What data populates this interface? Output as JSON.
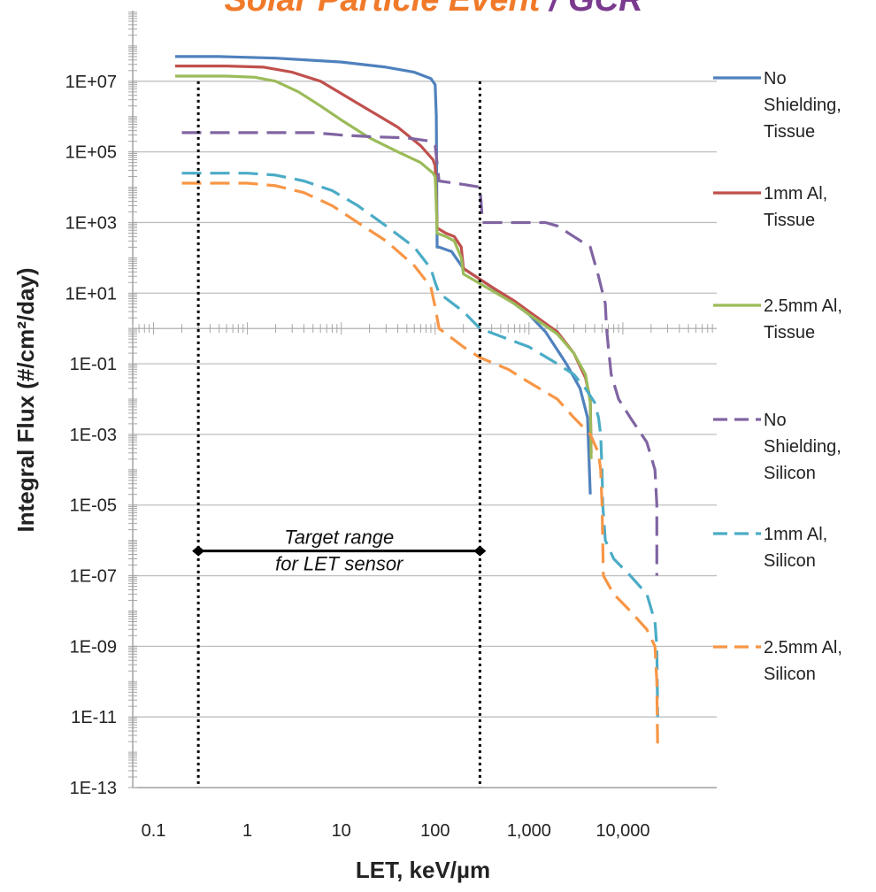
{
  "chart_data": {
    "type": "line",
    "title_parts": [
      {
        "text": "Solar Particle Event",
        "color": "#f07a2a"
      },
      {
        "text": " / ",
        "color": "#7a3a8e"
      },
      {
        "text": "GCR",
        "color": "#7a3a8e"
      }
    ],
    "xlabel": "LET, keV/µm",
    "ylabel": "Integral Flux (#/cm²/day)",
    "x_scale": "log",
    "y_scale": "log",
    "xlim": [
      0.06,
      100000
    ],
    "ylim": [
      1e-13,
      1000000000.0
    ],
    "x_ticks": [
      {
        "value": 0.1,
        "label": "0.1"
      },
      {
        "value": 1,
        "label": "1"
      },
      {
        "value": 10,
        "label": "10"
      },
      {
        "value": 100,
        "label": "100"
      },
      {
        "value": 1000,
        "label": "1,000"
      },
      {
        "value": 10000,
        "label": "10,000"
      }
    ],
    "y_ticks": [
      {
        "value": 10000000.0,
        "label": "1E+07"
      },
      {
        "value": 100000.0,
        "label": "1E+05"
      },
      {
        "value": 1000.0,
        "label": "1E+03"
      },
      {
        "value": 10.0,
        "label": "1E+01"
      },
      {
        "value": 0.1,
        "label": "1E-01"
      },
      {
        "value": 0.001,
        "label": "1E-03"
      },
      {
        "value": 1e-05,
        "label": "1E-05"
      },
      {
        "value": 1e-07,
        "label": "1E-07"
      },
      {
        "value": 1e-09,
        "label": "1E-09"
      },
      {
        "value": 1e-11,
        "label": "1E-11"
      },
      {
        "value": 1e-13,
        "label": "1E-13"
      }
    ],
    "grid": true,
    "legend_position": "right",
    "series": [
      {
        "name": "No Shielding, Tissue",
        "legend_lines": [
          "No",
          "Shielding,",
          "Tissue"
        ],
        "color": "#4f81bd",
        "dash": false,
        "points": [
          [
            0.17,
            50000000.0
          ],
          [
            0.5,
            50000000.0
          ],
          [
            2,
            45000000.0
          ],
          [
            10,
            35000000.0
          ],
          [
            30,
            25000000.0
          ],
          [
            60,
            18000000.0
          ],
          [
            90,
            12000000.0
          ],
          [
            100,
            8000000.0
          ],
          [
            103,
            1000000.0
          ],
          [
            105,
            200.0
          ],
          [
            110,
            200.0
          ],
          [
            150,
            150.0
          ],
          [
            200,
            50
          ],
          [
            400,
            15
          ],
          [
            700,
            5
          ],
          [
            1000,
            2.5
          ],
          [
            1500,
            0.8
          ],
          [
            2500,
            0.1
          ],
          [
            3500,
            0.02
          ],
          [
            4200,
            0.003
          ],
          [
            4400,
            0.0001
          ],
          [
            4500,
            2e-05
          ]
        ]
      },
      {
        "name": "1mm Al, Tissue",
        "legend_lines": [
          "1mm Al,",
          "Tissue"
        ],
        "color": "#c0504d",
        "dash": false,
        "points": [
          [
            0.17,
            27000000.0
          ],
          [
            0.6,
            27000000.0
          ],
          [
            1.5,
            25000000.0
          ],
          [
            3,
            18000000.0
          ],
          [
            6,
            10000000.0
          ],
          [
            10,
            4500000.0
          ],
          [
            20,
            1500000.0
          ],
          [
            40,
            500000.0
          ],
          [
            70,
            150000.0
          ],
          [
            95,
            60000.0
          ],
          [
            100,
            40000.0
          ],
          [
            103,
            5000.0
          ],
          [
            105,
            700
          ],
          [
            130,
            500
          ],
          [
            160,
            400
          ],
          [
            190,
            200
          ],
          [
            200,
            50
          ],
          [
            400,
            15
          ],
          [
            700,
            6
          ],
          [
            1000,
            3
          ],
          [
            2000,
            0.8
          ],
          [
            3000,
            0.2
          ],
          [
            4000,
            0.04
          ],
          [
            4500,
            0.01
          ],
          [
            4600,
            0.0003
          ]
        ]
      },
      {
        "name": "2.5mm Al, Tissue",
        "legend_lines": [
          "2.5mm Al,",
          "Tissue"
        ],
        "color": "#9bbb59",
        "dash": false,
        "points": [
          [
            0.17,
            14000000.0
          ],
          [
            0.6,
            14000000.0
          ],
          [
            1.2,
            13000000.0
          ],
          [
            2,
            10000000.0
          ],
          [
            3.5,
            5000000.0
          ],
          [
            6,
            2000000.0
          ],
          [
            10,
            800000.0
          ],
          [
            20,
            250000.0
          ],
          [
            40,
            100000.0
          ],
          [
            70,
            50000.0
          ],
          [
            95,
            25000.0
          ],
          [
            100,
            20000.0
          ],
          [
            103,
            3000.0
          ],
          [
            105,
            500
          ],
          [
            130,
            400
          ],
          [
            160,
            300
          ],
          [
            190,
            100
          ],
          [
            200,
            35
          ],
          [
            400,
            12
          ],
          [
            700,
            5
          ],
          [
            1000,
            2.5
          ],
          [
            2000,
            0.7
          ],
          [
            3000,
            0.2
          ],
          [
            4000,
            0.05
          ],
          [
            4500,
            0.008
          ],
          [
            4600,
            0.0002
          ]
        ]
      },
      {
        "name": "No Shielding, Silicon",
        "legend_lines": [
          "No",
          "Shielding,",
          "Silicon"
        ],
        "color": "#8064a2",
        "dash": true,
        "points": [
          [
            0.2,
            350000.0
          ],
          [
            1,
            350000.0
          ],
          [
            5,
            350000.0
          ],
          [
            10,
            300000.0
          ],
          [
            20,
            270000.0
          ],
          [
            50,
            250000.0
          ],
          [
            90,
            200000.0
          ],
          [
            100,
            150000.0
          ],
          [
            110,
            15000.0
          ],
          [
            200,
            12000.0
          ],
          [
            300,
            10000.0
          ],
          [
            320,
            1000.0
          ],
          [
            500,
            1000.0
          ],
          [
            1500,
            1000.0
          ],
          [
            2000,
            800
          ],
          [
            3000,
            400
          ],
          [
            4500,
            200
          ],
          [
            5500,
            30
          ],
          [
            6500,
            5
          ],
          [
            6700,
            1
          ],
          [
            7000,
            0.3
          ],
          [
            7500,
            0.05
          ],
          [
            9000,
            0.01
          ],
          [
            12000,
            0.003
          ],
          [
            18000,
            0.0006
          ],
          [
            22000,
            0.0001
          ],
          [
            23000,
            1e-05
          ],
          [
            23000,
            1e-07
          ]
        ]
      },
      {
        "name": "1mm Al, Silicon",
        "legend_lines": [
          "1mm Al,",
          "Silicon"
        ],
        "color": "#4bacc6",
        "dash": true,
        "points": [
          [
            0.2,
            25000.0
          ],
          [
            1,
            25000.0
          ],
          [
            2,
            22000.0
          ],
          [
            4,
            15000.0
          ],
          [
            8,
            8000.0
          ],
          [
            15,
            3000.0
          ],
          [
            30,
            800
          ],
          [
            60,
            200
          ],
          [
            90,
            50
          ],
          [
            100,
            20
          ],
          [
            110,
            10
          ],
          [
            200,
            3
          ],
          [
            300,
            1
          ],
          [
            600,
            0.5
          ],
          [
            1000,
            0.3
          ],
          [
            2000,
            0.1
          ],
          [
            3000,
            0.05
          ],
          [
            4000,
            0.02
          ],
          [
            5000,
            0.008
          ],
          [
            5500,
            0.003
          ],
          [
            5800,
            0.001
          ],
          [
            6000,
            0.0001
          ],
          [
            6100,
            1e-05
          ],
          [
            6500,
            1e-06
          ],
          [
            8000,
            3e-07
          ],
          [
            12000,
            1e-07
          ],
          [
            18000,
            3e-08
          ],
          [
            22000,
            5e-09
          ],
          [
            23000,
            1e-09
          ],
          [
            23500,
            1e-11
          ]
        ]
      },
      {
        "name": "2.5mm Al, Silicon",
        "legend_lines": [
          "2.5mm Al,",
          "Silicon"
        ],
        "color": "#f79646",
        "dash": true,
        "points": [
          [
            0.2,
            13000.0
          ],
          [
            1,
            13000.0
          ],
          [
            2,
            11000.0
          ],
          [
            4,
            7000.0
          ],
          [
            8,
            3000.0
          ],
          [
            15,
            1000.0
          ],
          [
            30,
            300
          ],
          [
            60,
            60
          ],
          [
            90,
            15
          ],
          [
            100,
            4
          ],
          [
            110,
            1
          ],
          [
            200,
            0.3
          ],
          [
            300,
            0.15
          ],
          [
            600,
            0.07
          ],
          [
            1000,
            0.03
          ],
          [
            2000,
            0.01
          ],
          [
            3000,
            0.003
          ],
          [
            4500,
            0.001
          ],
          [
            5500,
            0.0003
          ],
          [
            5800,
            0.0001
          ],
          [
            6000,
            1e-05
          ],
          [
            6200,
            1e-07
          ],
          [
            8000,
            3e-08
          ],
          [
            12000,
            1e-08
          ],
          [
            18000,
            3e-09
          ],
          [
            22000,
            1e-09
          ],
          [
            23000,
            1e-10
          ],
          [
            23500,
            1e-12
          ]
        ]
      }
    ],
    "annotations": {
      "range_label_lines": [
        "Target range",
        "for LET sensor"
      ],
      "range_x": [
        0.3,
        300
      ],
      "range_y": 5e-07,
      "vlines": [
        0.3,
        300
      ]
    }
  }
}
